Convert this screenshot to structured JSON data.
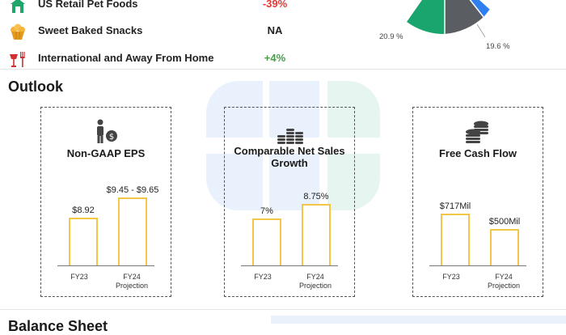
{
  "segments": [
    {
      "icon": "dog-house-icon",
      "label": "US Retail Pet Foods",
      "value": "-39%",
      "color": "#e53935"
    },
    {
      "icon": "cupcake-icon",
      "label": "Sweet Baked Snacks",
      "value": "NA",
      "color": "#222222"
    },
    {
      "icon": "fork-knife-cup-icon",
      "label": "International and Away From Home",
      "value": "+4%",
      "color": "#43a047"
    }
  ],
  "pie": {
    "label_left": "20.9 %",
    "label_right": "19.6 %",
    "colors": [
      "#1aa56e",
      "#5a5d61",
      "#2f7ff0"
    ]
  },
  "outlook": {
    "title": "Outlook",
    "cards": [
      {
        "icon": "person-money-bag-icon",
        "title_lines": [
          "Non-GAAP EPS"
        ],
        "bars": [
          {
            "label": "$8.92",
            "x_lines": [
              "FY23"
            ],
            "value_fraction": 0.62
          },
          {
            "label": "$9.45 - $9.65",
            "x_lines": [
              "FY24",
              "Projection"
            ],
            "value_fraction": 0.88
          }
        ]
      },
      {
        "icon": "coin-stacks-icon",
        "title_lines": [
          "Comparable Net Sales",
          "Growth"
        ],
        "bars": [
          {
            "label": "7%",
            "x_lines": [
              "FY23"
            ],
            "value_fraction": 0.61
          },
          {
            "label": "8.75%",
            "x_lines": [
              "FY24",
              "Projection"
            ],
            "value_fraction": 0.8
          }
        ]
      },
      {
        "icon": "coins-icon",
        "title_lines": [
          "Free Cash Flow"
        ],
        "bars": [
          {
            "label": "$717Mil",
            "x_lines": [
              "FY23"
            ],
            "value_fraction": 0.67
          },
          {
            "label": "$500Mil",
            "x_lines": [
              "FY24",
              "Projection"
            ],
            "value_fraction": 0.47
          }
        ]
      }
    ]
  },
  "balance_sheet": {
    "title": "Balance Sheet"
  }
}
